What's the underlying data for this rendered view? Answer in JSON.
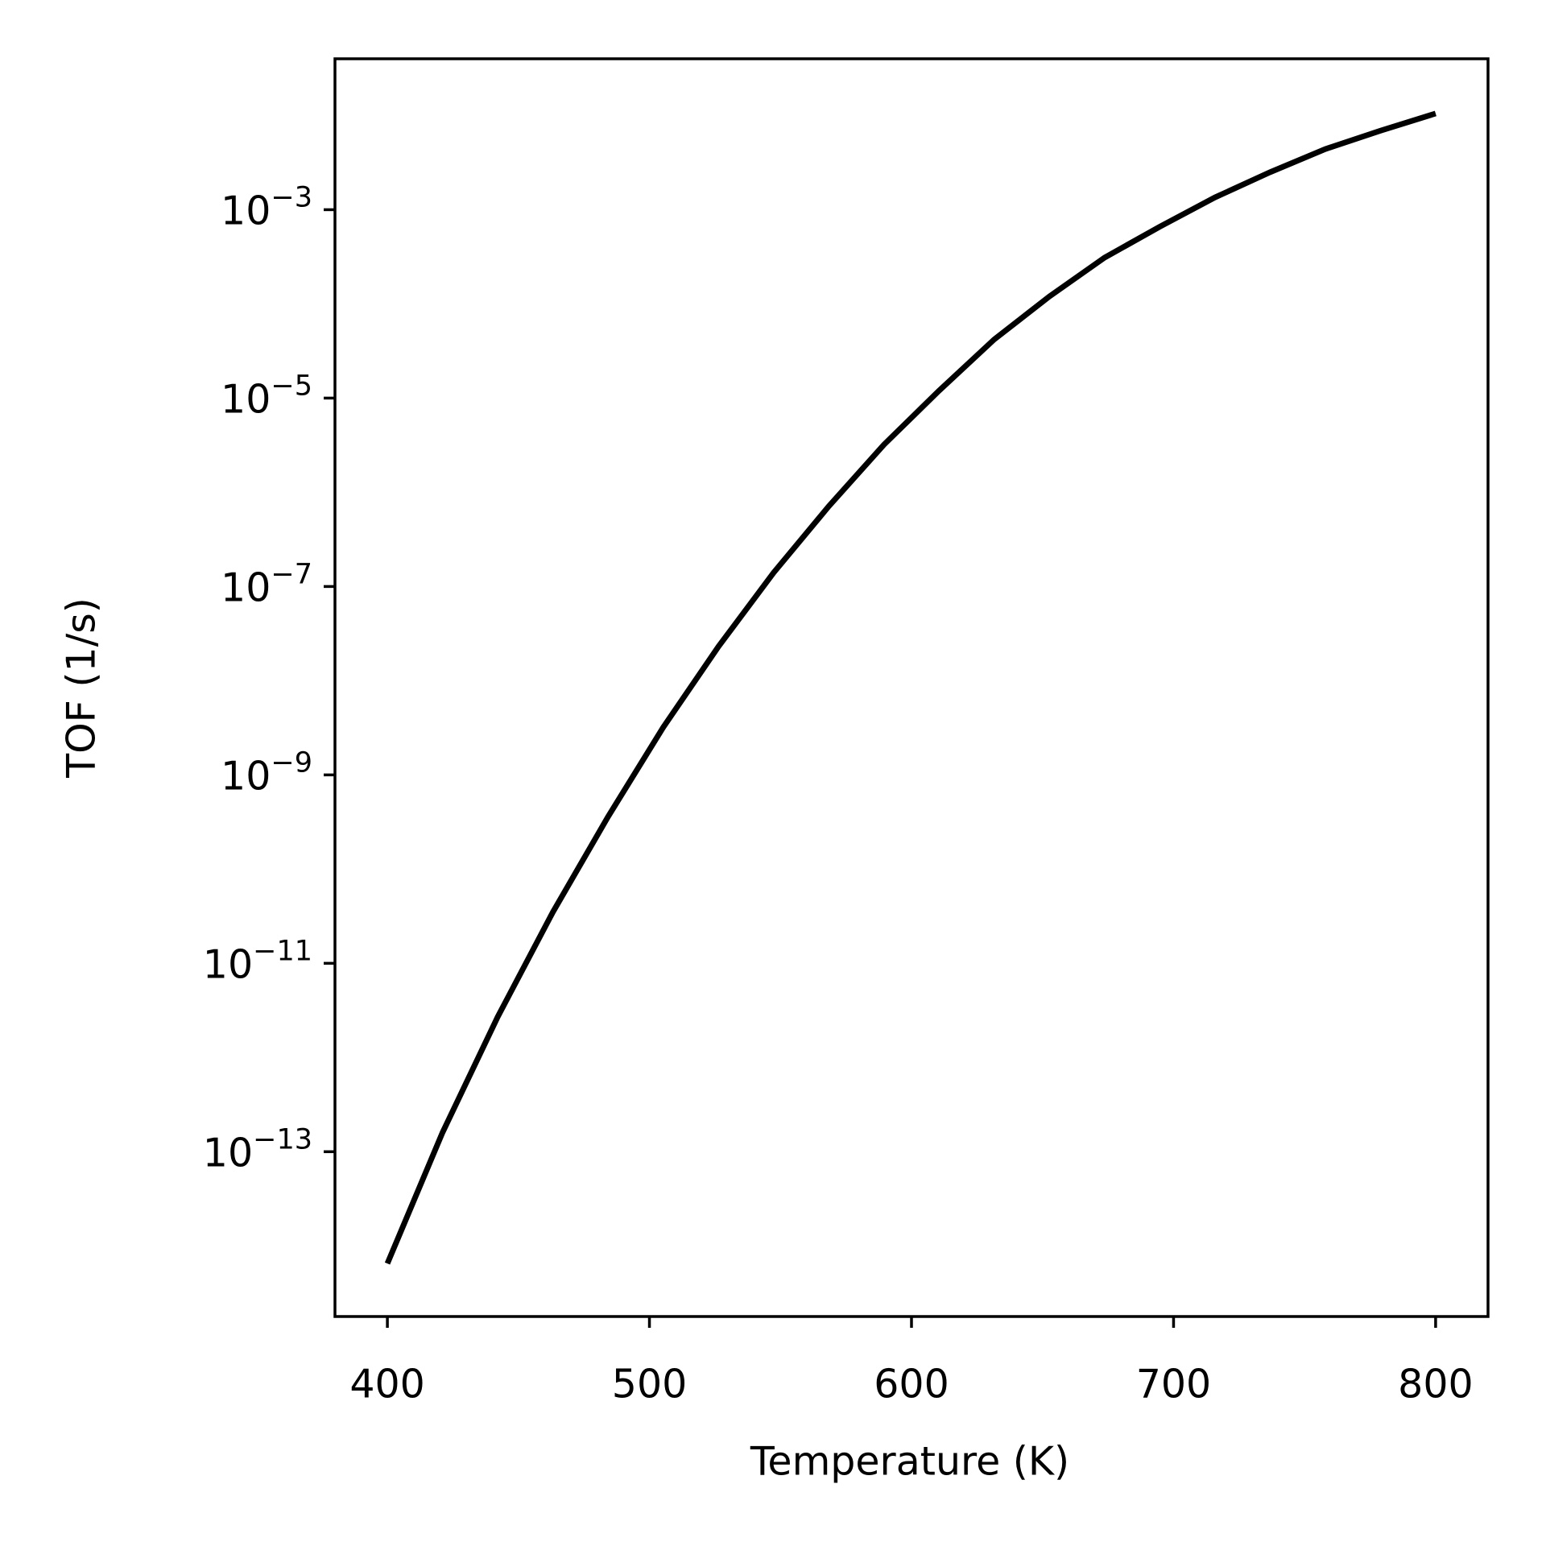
{
  "chart_data": {
    "type": "line",
    "x_label": "Temperature (K)",
    "y_label": "TOF (1/s)",
    "x": [
      400,
      421.05,
      442.1,
      463.16,
      484.21,
      505.26,
      526.32,
      547.37,
      568.42,
      589.47,
      610.53,
      631.58,
      652.63,
      673.68,
      694.74,
      715.79,
      736.84,
      757.89,
      778.95,
      800
    ],
    "series": [
      {
        "color": "#000000",
        "values": [
          6.5e-15,
          1.6e-13,
          2.7e-12,
          3.5e-11,
          3.6e-10,
          3.2e-09,
          2.3e-08,
          1.4e-07,
          7.1e-07,
          3.2e-06,
          1.2e-05,
          4.2e-05,
          0.00012,
          0.00031,
          0.00066,
          0.00135,
          0.0025,
          0.0044,
          0.0069,
          0.0105
        ]
      }
    ],
    "xlim": [
      380,
      820
    ],
    "xticks": [
      400,
      500,
      600,
      700,
      800
    ],
    "ylim": [
      1.78e-15,
      0.04
    ],
    "y_log": true,
    "yticks": [
      {
        "value": 0.001,
        "label": "10−3"
      },
      {
        "value": 1e-05,
        "label": "10−5"
      },
      {
        "value": 1e-07,
        "label": "10−7"
      },
      {
        "value": 1e-09,
        "label": "10−9"
      },
      {
        "value": 1e-11,
        "label": "10−11"
      },
      {
        "value": 1e-13,
        "label": "10−13"
      }
    ],
    "grid": false
  }
}
